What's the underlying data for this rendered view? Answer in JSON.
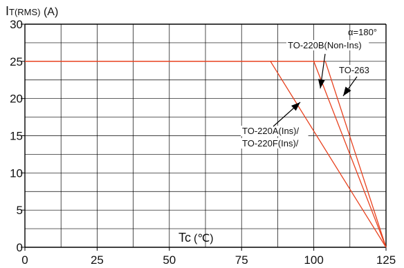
{
  "chart_data": {
    "type": "line",
    "ylabel_main": "I",
    "ylabel_sub": "T(RMS)",
    "ylabel_unit": " (A)",
    "xlabel_main": "Tc",
    "xlabel_unit": "(℃)",
    "xlim": [
      0,
      125
    ],
    "ylim": [
      0,
      30
    ],
    "x_ticks": [
      0,
      25,
      50,
      75,
      100,
      125
    ],
    "y_ticks": [
      0,
      5,
      10,
      15,
      20,
      25,
      30
    ],
    "x_tick_labels": [
      "0",
      "25",
      "50",
      "75",
      "100",
      "125"
    ],
    "y_tick_labels": [
      "0",
      "5",
      "10",
      "15",
      "20",
      "25",
      "30"
    ],
    "grid": true,
    "annotation_alpha": "α=180°",
    "series": [
      {
        "name": "TO-220A(Ins)/ TO-220F(Ins)/",
        "points": [
          [
            0,
            25
          ],
          [
            85,
            25
          ],
          [
            125,
            0
          ]
        ]
      },
      {
        "name": "TO-220B(Non-Ins)",
        "points": [
          [
            0,
            25
          ],
          [
            100,
            25
          ],
          [
            125,
            0
          ]
        ]
      },
      {
        "name": "TO-263",
        "points": [
          [
            0,
            25
          ],
          [
            104,
            25
          ],
          [
            125,
            0
          ]
        ]
      }
    ],
    "labels": [
      {
        "text": "TO-220B(Non-Ins)"
      },
      {
        "text": "TO-263"
      },
      {
        "text": "TO-220A(Ins)/"
      },
      {
        "text": "TO-220F(Ins)/"
      }
    ],
    "colors": {
      "series": "#e8411e",
      "grid": "#000000",
      "arrow": "#000000"
    }
  }
}
